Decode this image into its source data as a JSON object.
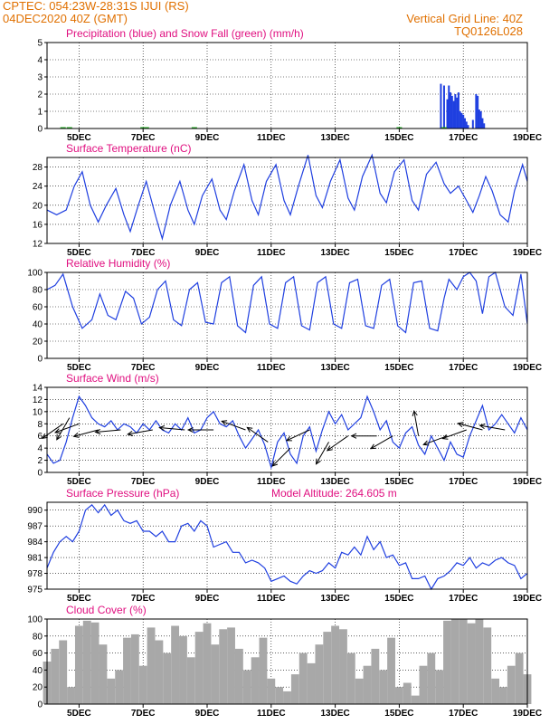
{
  "header": {
    "station": "CPTEC:   054:23W-28:31S   IJUI (RS)",
    "run": "04DEC2020 40Z (GMT)",
    "grid_note": "Vertical Grid Line: 40Z",
    "model_code": "TQ0126L028"
  },
  "colors": {
    "header": "#e07000",
    "title": "#e01080",
    "line": "#1f3fe0",
    "snow": "#20b020",
    "cloud": "#a8a8a8"
  },
  "x_axis": {
    "range_days": [
      4.0,
      19.0
    ],
    "tick_days": [
      5,
      7,
      9,
      11,
      13,
      15,
      17,
      19
    ],
    "tick_labels": [
      "5DEC",
      "7DEC",
      "9DEC",
      "11DEC",
      "13DEC",
      "15DEC",
      "17DEC",
      "19DEC"
    ]
  },
  "chart_data": [
    {
      "id": "precip",
      "type": "bar",
      "title": "Precipitation (blue) and Snow Fall (green) (mm/h)",
      "ylim": [
        0,
        5
      ],
      "yticks": [
        0,
        1,
        2,
        3,
        4,
        5
      ],
      "series": [
        {
          "name": "Precipitation",
          "color": "#1f3fe0",
          "x": [
            16.3,
            16.4,
            16.5,
            16.55,
            16.6,
            16.65,
            16.7,
            16.75,
            16.8,
            16.85,
            16.9,
            16.95,
            17.0,
            17.05,
            17.1,
            17.15,
            17.3,
            17.4,
            17.45,
            17.5,
            17.55,
            17.6,
            17.65
          ],
          "values": [
            2.6,
            2.5,
            1.7,
            2.5,
            2.1,
            1.9,
            1.6,
            2.0,
            1.8,
            2.1,
            1.0,
            0.9,
            0.8,
            0.6,
            0.4,
            0.2,
            0.5,
            2.0,
            1.9,
            1.1,
            1.0,
            0.6,
            0.3
          ]
        },
        {
          "name": "Snow Fall",
          "color": "#20b020",
          "x": [],
          "values": []
        }
      ]
    },
    {
      "id": "temperature",
      "type": "line",
      "title": "Surface Temperature (nC)",
      "ylim": [
        12,
        30
      ],
      "yticks": [
        12,
        16,
        20,
        24,
        28
      ],
      "x": [
        4.0,
        4.3,
        4.6,
        4.85,
        5.1,
        5.35,
        5.6,
        5.85,
        6.15,
        6.4,
        6.6,
        6.85,
        7.1,
        7.4,
        7.6,
        7.85,
        8.15,
        8.4,
        8.6,
        8.85,
        9.15,
        9.4,
        9.6,
        9.85,
        10.15,
        10.4,
        10.6,
        10.85,
        11.15,
        11.4,
        11.6,
        11.85,
        12.15,
        12.4,
        12.6,
        12.85,
        13.15,
        13.4,
        13.6,
        13.85,
        14.15,
        14.4,
        14.6,
        14.85,
        15.15,
        15.4,
        15.6,
        15.85,
        16.15,
        16.4,
        16.6,
        16.85,
        17.1,
        17.3,
        17.5,
        17.7,
        17.9,
        18.15,
        18.4,
        18.6,
        18.85,
        19.0
      ],
      "values": [
        19,
        18,
        19,
        24,
        27,
        20,
        16.5,
        20,
        23.5,
        18,
        14.5,
        20,
        25,
        17.5,
        13,
        20,
        25,
        19,
        16,
        22,
        25.5,
        19,
        17,
        23,
        28.5,
        21,
        18,
        25,
        28.5,
        21,
        18,
        24,
        30.5,
        22,
        19.5,
        25,
        29.5,
        21.5,
        19,
        26,
        30.5,
        22.5,
        20.5,
        27,
        29.5,
        21,
        19,
        26.5,
        29,
        24.5,
        22.5,
        24,
        21,
        18.5,
        22,
        26,
        23,
        18,
        16.5,
        23,
        28.5,
        25
      ]
    },
    {
      "id": "humidity",
      "type": "line",
      "title": "Relative Humidity (%)",
      "ylim": [
        0,
        100
      ],
      "yticks": [
        0,
        20,
        40,
        60,
        80,
        100
      ],
      "x": [
        4.0,
        4.25,
        4.5,
        4.8,
        5.1,
        5.4,
        5.65,
        5.9,
        6.15,
        6.45,
        6.7,
        6.95,
        7.2,
        7.45,
        7.7,
        7.95,
        8.2,
        8.45,
        8.7,
        8.95,
        9.2,
        9.45,
        9.7,
        9.95,
        10.2,
        10.45,
        10.7,
        10.95,
        11.2,
        11.45,
        11.7,
        11.95,
        12.2,
        12.45,
        12.7,
        12.95,
        13.2,
        13.45,
        13.7,
        13.95,
        14.2,
        14.45,
        14.7,
        14.95,
        15.2,
        15.45,
        15.7,
        15.95,
        16.2,
        16.4,
        16.55,
        16.8,
        17.0,
        17.2,
        17.4,
        17.6,
        17.8,
        18.0,
        18.3,
        18.55,
        18.8,
        19.0
      ],
      "values": [
        80,
        85,
        98,
        60,
        35,
        45,
        75,
        50,
        45,
        78,
        70,
        40,
        48,
        80,
        90,
        45,
        38,
        80,
        88,
        42,
        40,
        88,
        95,
        38,
        30,
        85,
        95,
        40,
        35,
        88,
        95,
        38,
        33,
        88,
        95,
        40,
        35,
        88,
        92,
        38,
        35,
        85,
        92,
        38,
        30,
        88,
        90,
        35,
        32,
        70,
        92,
        80,
        95,
        100,
        90,
        52,
        95,
        100,
        60,
        50,
        98,
        40
      ]
    },
    {
      "id": "wind",
      "type": "line",
      "title": "Surface Wind (m/s)",
      "ylim": [
        0,
        14
      ],
      "yticks": [
        0,
        2,
        4,
        6,
        8,
        10,
        12,
        14
      ],
      "x": [
        4.0,
        4.2,
        4.4,
        4.6,
        4.8,
        5.0,
        5.2,
        5.4,
        5.6,
        5.8,
        6.0,
        6.2,
        6.4,
        6.6,
        6.8,
        7.0,
        7.2,
        7.4,
        7.6,
        7.8,
        8.0,
        8.2,
        8.4,
        8.6,
        8.8,
        9.0,
        9.2,
        9.4,
        9.6,
        9.8,
        10.0,
        10.2,
        10.4,
        10.6,
        10.8,
        11.0,
        11.2,
        11.4,
        11.6,
        11.8,
        12.0,
        12.2,
        12.4,
        12.6,
        12.8,
        13.0,
        13.2,
        13.4,
        13.6,
        13.8,
        14.0,
        14.2,
        14.4,
        14.6,
        14.8,
        15.0,
        15.2,
        15.4,
        15.6,
        15.8,
        16.0,
        16.2,
        16.4,
        16.6,
        16.8,
        17.0,
        17.2,
        17.4,
        17.6,
        17.8,
        18.0,
        18.2,
        18.4,
        18.6,
        18.8,
        19.0
      ],
      "values": [
        3,
        1.5,
        2,
        5,
        9,
        12.5,
        11,
        9,
        8,
        7.5,
        8.5,
        7,
        8,
        7.5,
        6.5,
        8,
        7,
        8.5,
        7,
        6.5,
        8,
        7,
        9,
        6.5,
        7,
        9,
        10,
        8,
        7.5,
        8.5,
        6,
        4,
        5.5,
        7,
        4.5,
        0.8,
        5,
        6.5,
        3,
        1.5,
        6,
        7.5,
        3.5,
        7,
        10,
        8,
        9.5,
        7,
        8,
        9,
        12.5,
        10,
        7,
        8.5,
        5,
        4,
        6.5,
        7.5,
        4.5,
        3,
        6,
        4,
        2,
        5,
        3,
        2.5,
        6,
        8.5,
        11,
        7,
        8,
        9.5,
        8,
        6.5,
        9,
        7
      ]
    },
    {
      "id": "pressure",
      "type": "line",
      "title": "Surface Pressure (hPa)",
      "annotation": "Model Altitude: 264.605 m",
      "ylim": [
        975,
        991.5
      ],
      "yticks": [
        975,
        978,
        981,
        984,
        987,
        990
      ],
      "x": [
        4.0,
        4.2,
        4.4,
        4.6,
        4.8,
        5.0,
        5.2,
        5.4,
        5.6,
        5.8,
        6.0,
        6.2,
        6.4,
        6.6,
        6.8,
        7.0,
        7.2,
        7.4,
        7.6,
        7.8,
        8.0,
        8.2,
        8.4,
        8.6,
        8.8,
        9.0,
        9.2,
        9.4,
        9.6,
        9.8,
        10.0,
        10.2,
        10.4,
        10.6,
        10.8,
        11.0,
        11.2,
        11.4,
        11.6,
        11.8,
        12.0,
        12.2,
        12.4,
        12.6,
        12.8,
        13.0,
        13.2,
        13.4,
        13.6,
        13.8,
        14.0,
        14.2,
        14.4,
        14.6,
        14.8,
        15.0,
        15.2,
        15.4,
        15.6,
        15.8,
        16.0,
        16.2,
        16.4,
        16.6,
        16.8,
        17.0,
        17.2,
        17.4,
        17.6,
        17.8,
        18.0,
        18.2,
        18.4,
        18.6,
        18.8,
        19.0
      ],
      "values": [
        979,
        982,
        984,
        985,
        984,
        986,
        990,
        991,
        989.5,
        991,
        989,
        990,
        988,
        987.5,
        988,
        986,
        986,
        985,
        986,
        984,
        984,
        987,
        987.5,
        986,
        988,
        987,
        983,
        983.5,
        984,
        982,
        982,
        980,
        980.5,
        980,
        979,
        976.5,
        977,
        977.5,
        976.5,
        976,
        977.5,
        978.5,
        978,
        978.5,
        980,
        979,
        982,
        981.5,
        983,
        981.5,
        985,
        982.5,
        984,
        981,
        981.5,
        979.5,
        980,
        977,
        977,
        977.5,
        975,
        977,
        977.5,
        978.5,
        980,
        979.5,
        981,
        979,
        980,
        979.5,
        980.5,
        981,
        980,
        979.5,
        977,
        978
      ]
    },
    {
      "id": "cloud",
      "type": "bar",
      "title": "Cloud Cover (%)",
      "ylim": [
        0,
        100
      ],
      "yticks": [
        0,
        20,
        40,
        60,
        80,
        100
      ],
      "x": [
        4.0,
        4.25,
        4.5,
        4.75,
        5.0,
        5.25,
        5.5,
        5.75,
        6.0,
        6.25,
        6.5,
        6.75,
        7.0,
        7.25,
        7.5,
        7.75,
        8.0,
        8.25,
        8.5,
        8.75,
        9.0,
        9.25,
        9.5,
        9.75,
        10.0,
        10.25,
        10.5,
        10.75,
        11.0,
        11.25,
        11.5,
        11.75,
        12.0,
        12.25,
        12.5,
        12.75,
        13.0,
        13.25,
        13.5,
        13.75,
        14.0,
        14.25,
        14.5,
        14.75,
        15.0,
        15.25,
        15.5,
        15.75,
        16.0,
        16.25,
        16.5,
        16.75,
        17.0,
        17.25,
        17.5,
        17.75,
        18.0,
        18.25,
        18.5,
        18.75,
        19.0
      ],
      "values": [
        50,
        65,
        75,
        20,
        92,
        98,
        96,
        70,
        30,
        40,
        78,
        82,
        45,
        90,
        75,
        60,
        92,
        80,
        55,
        85,
        95,
        70,
        88,
        90,
        65,
        40,
        55,
        78,
        30,
        20,
        15,
        35,
        60,
        48,
        70,
        85,
        92,
        88,
        60,
        30,
        45,
        65,
        40,
        78,
        20,
        25,
        10,
        45,
        60,
        40,
        98,
        100,
        100,
        95,
        100,
        90,
        30,
        20,
        45,
        60,
        35
      ]
    }
  ]
}
